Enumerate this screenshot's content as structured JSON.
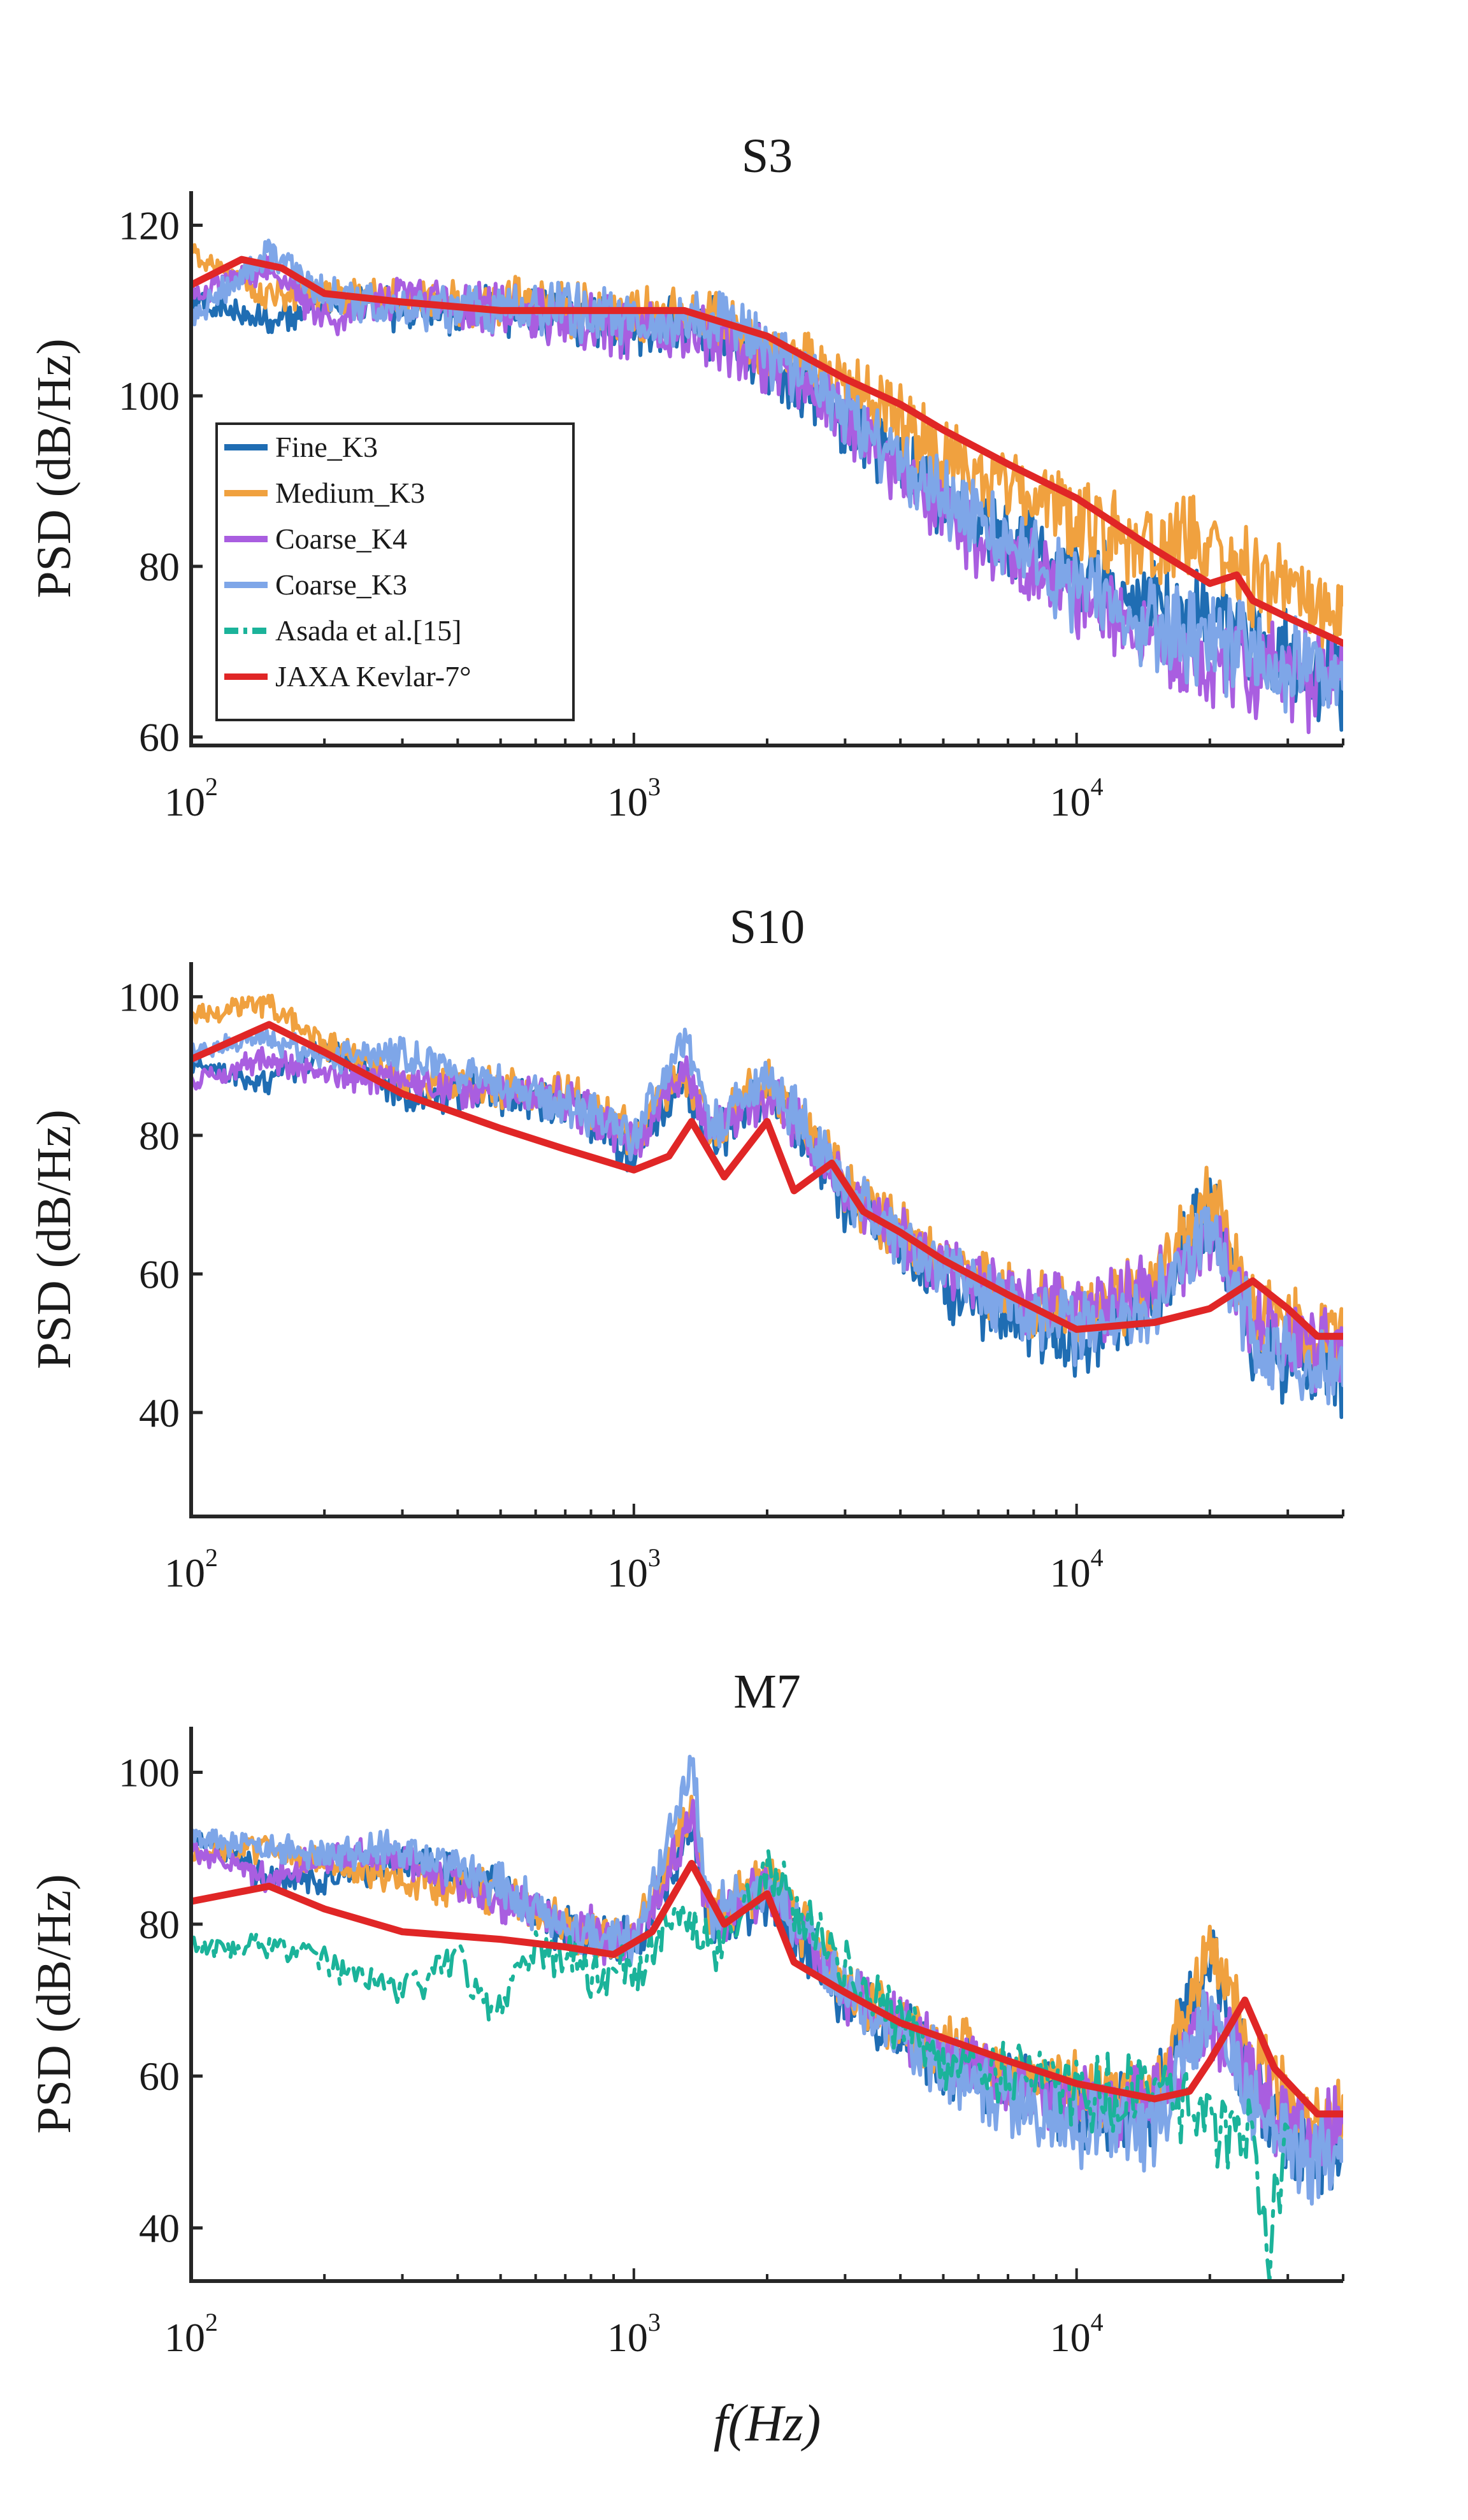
{
  "figure": {
    "xlabel": "f(Hz)",
    "x_scale": "log",
    "x_ticks": [
      {
        "base": "10",
        "exp": "2",
        "value": 100
      },
      {
        "base": "10",
        "exp": "3",
        "value": 1000
      },
      {
        "base": "10",
        "exp": "4",
        "value": 10000
      }
    ],
    "legend_placement": "inside left of top panel",
    "legend": [
      {
        "label": "Fine_K3",
        "color": "#1f6db3",
        "dash": false
      },
      {
        "label": "Medium_K3",
        "color": "#f0a13f",
        "dash": false
      },
      {
        "label": "Coarse_K4",
        "color": "#a95ee0",
        "dash": false
      },
      {
        "label": "Coarse_K3",
        "color": "#7ea6e8",
        "dash": false
      },
      {
        "label": "Asada et al.[15]",
        "color": "#1bb39a",
        "dash": true
      },
      {
        "label": "JAXA Kevlar-7°",
        "color": "#e02626",
        "dash": false
      }
    ]
  },
  "chart_data": [
    {
      "type": "line",
      "title": "S3",
      "ylabel": "PSD (dB/Hz)",
      "xlim": [
        100,
        40000
      ],
      "ylim": [
        59,
        124
      ],
      "yticks": [
        60,
        80,
        100,
        120
      ],
      "series": [
        {
          "name": "Fine_K3",
          "x": [
            100,
            150,
            200,
            300,
            500,
            700,
            1000,
            1500,
            2000,
            3000,
            4000,
            5000,
            7000,
            10000,
            15000,
            20000,
            25000,
            30000,
            40000
          ],
          "y": [
            111,
            109,
            111,
            110,
            110,
            109,
            108,
            108,
            104,
            97,
            92,
            88,
            84,
            79,
            75,
            74,
            72,
            69,
            67
          ]
        },
        {
          "name": "Medium_K3",
          "x": [
            100,
            150,
            200,
            300,
            500,
            700,
            1000,
            1500,
            2000,
            3000,
            4000,
            5000,
            7000,
            10000,
            15000,
            20000,
            25000,
            30000,
            40000
          ],
          "y": [
            117,
            112,
            112,
            111,
            111,
            110,
            110,
            109,
            106,
            101,
            97,
            93,
            89,
            86,
            82,
            83,
            78,
            76,
            74
          ]
        },
        {
          "name": "Coarse_K4",
          "x": [
            100,
            150,
            200,
            300,
            500,
            700,
            1000,
            1500,
            2000,
            3000,
            4000,
            5000,
            7000,
            10000,
            15000,
            20000,
            25000,
            30000,
            40000
          ],
          "y": [
            112,
            115,
            109,
            112,
            110,
            109,
            108,
            107,
            104,
            97,
            91,
            86,
            81,
            76,
            71,
            69,
            68,
            67,
            66
          ]
        },
        {
          "name": "Coarse_K3",
          "x": [
            100,
            150,
            200,
            300,
            500,
            700,
            1000,
            1500,
            2000,
            3000,
            4000,
            5000,
            7000,
            10000,
            15000,
            20000,
            25000,
            30000,
            40000
          ],
          "y": [
            109,
            117,
            112,
            110,
            110,
            110,
            109,
            109,
            105,
            98,
            92,
            88,
            83,
            77,
            73,
            71,
            70,
            68,
            67
          ]
        },
        {
          "name": "JAXA Kevlar-7°",
          "x": [
            100,
            130,
            160,
            200,
            300,
            500,
            700,
            1000,
            1300,
            1500,
            2000,
            3000,
            4000,
            5000,
            7000,
            10000,
            15000,
            20000,
            23000,
            25000,
            30000,
            40000
          ],
          "y": [
            113,
            116,
            115,
            112,
            111,
            110,
            110,
            110,
            110,
            109,
            107,
            102,
            99,
            96,
            92,
            88,
            82,
            78,
            79,
            76,
            74,
            71
          ]
        }
      ]
    },
    {
      "type": "line",
      "title": "S10",
      "ylabel": "PSD (dB/Hz)",
      "xlim": [
        100,
        40000
      ],
      "ylim": [
        25,
        105
      ],
      "yticks": [
        40,
        60,
        80,
        100
      ],
      "series": [
        {
          "name": "Fine_K3",
          "x": [
            100,
            150,
            200,
            300,
            500,
            700,
            1000,
            1300,
            1500,
            2000,
            2700,
            3000,
            4000,
            5000,
            7000,
            10000,
            15000,
            20000,
            25000,
            30000,
            40000
          ],
          "y": [
            90,
            88,
            92,
            86,
            86,
            84,
            78,
            88,
            79,
            86,
            76,
            70,
            64,
            58,
            53,
            50,
            56,
            70,
            50,
            47,
            45
          ]
        },
        {
          "name": "Medium_K3",
          "x": [
            100,
            150,
            200,
            300,
            500,
            700,
            1000,
            1300,
            1500,
            2000,
            2700,
            3000,
            4000,
            5000,
            7000,
            10000,
            15000,
            20000,
            25000,
            30000,
            40000
          ],
          "y": [
            97,
            99,
            93,
            88,
            87,
            86,
            80,
            90,
            81,
            88,
            78,
            72,
            66,
            62,
            57,
            54,
            58,
            72,
            55,
            52,
            50
          ]
        },
        {
          "name": "Coarse_K4",
          "x": [
            100,
            150,
            200,
            300,
            500,
            700,
            1000,
            1300,
            1500,
            2000,
            2700,
            3000,
            4000,
            5000,
            7000,
            10000,
            15000,
            20000,
            25000,
            30000,
            40000
          ],
          "y": [
            88,
            91,
            89,
            88,
            86,
            85,
            79,
            89,
            80,
            86,
            77,
            72,
            66,
            61,
            57,
            54,
            58,
            66,
            53,
            50,
            48
          ]
        },
        {
          "name": "Coarse_K3",
          "x": [
            100,
            150,
            200,
            300,
            500,
            700,
            1000,
            1300,
            1500,
            2000,
            2700,
            3000,
            4000,
            5000,
            7000,
            10000,
            15000,
            20000,
            25000,
            30000,
            40000
          ],
          "y": [
            92,
            94,
            91,
            92,
            87,
            85,
            80,
            94,
            81,
            88,
            78,
            72,
            65,
            60,
            55,
            52,
            56,
            68,
            51,
            48,
            46
          ]
        },
        {
          "name": "JAXA Kevlar-7°",
          "x": [
            100,
            150,
            200,
            300,
            500,
            700,
            1000,
            1200,
            1350,
            1600,
            2000,
            2300,
            2800,
            3300,
            4000,
            5000,
            7000,
            10000,
            15000,
            20000,
            25000,
            30000,
            35000,
            40000
          ],
          "y": [
            91,
            96,
            92,
            86,
            81,
            78,
            75,
            77,
            82,
            74,
            82,
            72,
            76,
            69,
            66,
            62,
            57,
            52,
            53,
            55,
            59,
            55,
            51,
            51
          ]
        }
      ]
    },
    {
      "type": "line",
      "title": "M7",
      "ylabel": "PSD (dB/Hz)",
      "xlim": [
        100,
        40000
      ],
      "ylim": [
        33,
        106
      ],
      "yticks": [
        40,
        60,
        80,
        100
      ],
      "series": [
        {
          "name": "Fine_K3",
          "x": [
            100,
            150,
            200,
            300,
            500,
            700,
            1000,
            1350,
            1500,
            2000,
            3000,
            4000,
            5000,
            7000,
            10000,
            15000,
            20000,
            25000,
            30000,
            40000
          ],
          "y": [
            92,
            86,
            86,
            88,
            85,
            79,
            77,
            93,
            79,
            84,
            70,
            66,
            62,
            59,
            55,
            56,
            75,
            58,
            52,
            50
          ]
        },
        {
          "name": "Medium_K3",
          "x": [
            100,
            150,
            200,
            300,
            500,
            700,
            1000,
            1350,
            1500,
            2000,
            3000,
            4000,
            5000,
            7000,
            10000,
            15000,
            20000,
            25000,
            30000,
            40000
          ],
          "y": [
            89,
            90,
            88,
            86,
            84,
            80,
            78,
            95,
            81,
            86,
            72,
            67,
            64,
            61,
            58,
            58,
            76,
            62,
            56,
            54
          ]
        },
        {
          "name": "Coarse_K4",
          "x": [
            100,
            150,
            200,
            300,
            500,
            700,
            1000,
            1350,
            1500,
            2000,
            3000,
            4000,
            5000,
            7000,
            10000,
            15000,
            20000,
            25000,
            30000,
            40000
          ],
          "y": [
            90,
            86,
            89,
            89,
            83,
            80,
            77,
            94,
            80,
            85,
            71,
            66,
            63,
            59,
            56,
            56,
            68,
            58,
            54,
            52
          ]
        },
        {
          "name": "Coarse_K3",
          "x": [
            100,
            150,
            200,
            300,
            500,
            700,
            1000,
            1350,
            1500,
            2000,
            3000,
            4000,
            5000,
            7000,
            10000,
            15000,
            20000,
            25000,
            30000,
            40000
          ],
          "y": [
            91,
            90,
            89,
            90,
            85,
            80,
            78,
            100,
            81,
            86,
            71,
            65,
            61,
            57,
            53,
            53,
            70,
            56,
            50,
            48
          ]
        },
        {
          "name": "Asada et al.[15]",
          "x": [
            100,
            150,
            200,
            300,
            400,
            480,
            600,
            800,
            1000,
            1300,
            1500,
            2000,
            3000,
            4000,
            5000,
            7000,
            10000,
            15000,
            20000,
            25000,
            27000,
            30000
          ],
          "y": [
            77,
            77,
            75,
            71,
            76,
            67,
            78,
            73,
            74,
            82,
            76,
            87,
            74,
            67,
            63,
            60,
            58,
            57,
            54,
            52,
            35,
            55
          ]
        },
        {
          "name": "JAXA Kevlar-7°",
          "x": [
            100,
            150,
            200,
            300,
            500,
            700,
            900,
            1100,
            1350,
            1600,
            2000,
            2300,
            3000,
            4000,
            5000,
            7000,
            10000,
            15000,
            18000,
            20000,
            24000,
            28000,
            35000,
            40000
          ],
          "y": [
            83,
            85,
            82,
            79,
            78,
            77,
            76,
            79,
            88,
            80,
            84,
            75,
            71,
            67,
            65,
            62,
            59,
            57,
            58,
            62,
            70,
            61,
            55,
            55
          ]
        }
      ]
    }
  ]
}
